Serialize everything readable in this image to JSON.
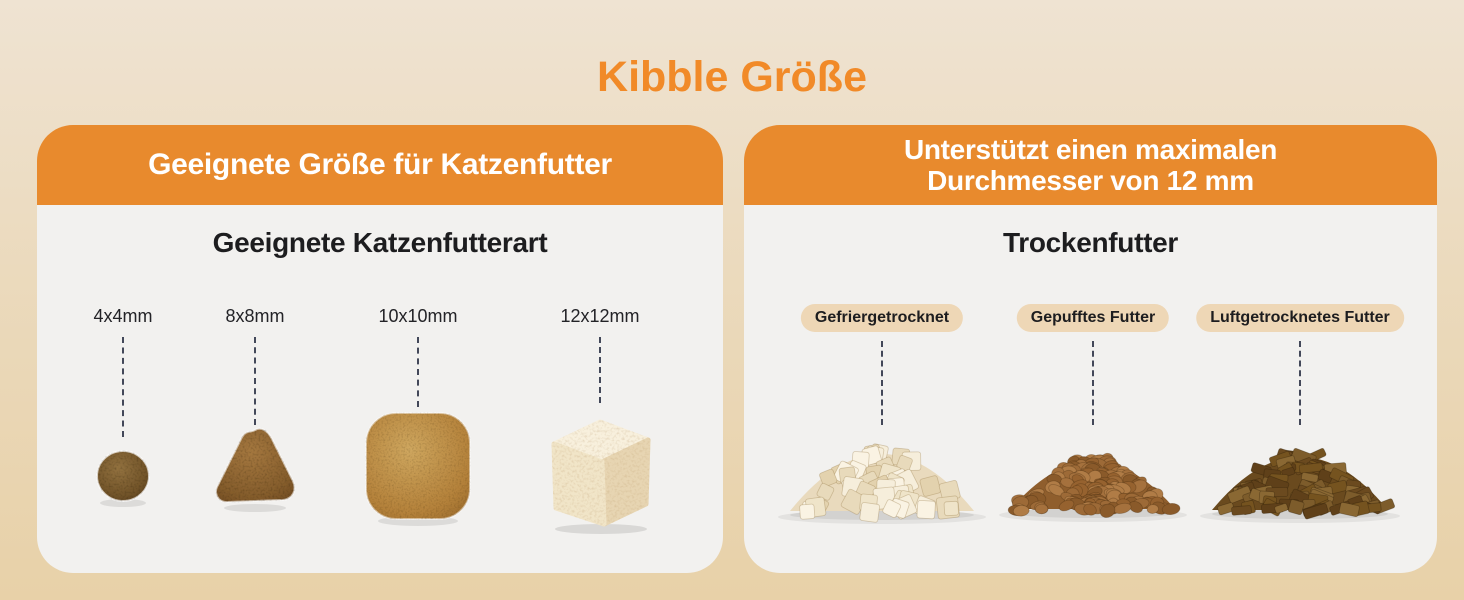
{
  "title": "Kibble Größe",
  "colors": {
    "accent_orange": "#e88a2d",
    "title_orange": "#f18a28",
    "header_text": "#ffffff",
    "panel_body": "#f2f1ef",
    "pill_bg": "#eed7b6",
    "text_dark": "#1d1d1f",
    "dash_line": "#434859"
  },
  "left_panel": {
    "header": "Geeignete Größe für Katzenfutter",
    "subtitle": "Geeignete Katzenfutterart",
    "items": [
      {
        "label": "4x4mm",
        "visual": "round-kibble"
      },
      {
        "label": "8x8mm",
        "visual": "triangle-kibble"
      },
      {
        "label": "10x10mm",
        "visual": "square-kibble"
      },
      {
        "label": "12x12mm",
        "visual": "cube-kibble"
      }
    ]
  },
  "right_panel": {
    "header_lines": [
      "Unterstützt einen maximalen",
      "Durchmesser von 12 mm"
    ],
    "subtitle": "Trockenfutter",
    "items": [
      {
        "label": "Gefriergetrocknet",
        "visual": "freeze-dried-cubes-pile"
      },
      {
        "label": "Gepufftes Futter",
        "visual": "puffed-kibble-pile"
      },
      {
        "label": "Luftgetrocknetes Futter",
        "visual": "air-dried-chunks-pile"
      }
    ]
  }
}
